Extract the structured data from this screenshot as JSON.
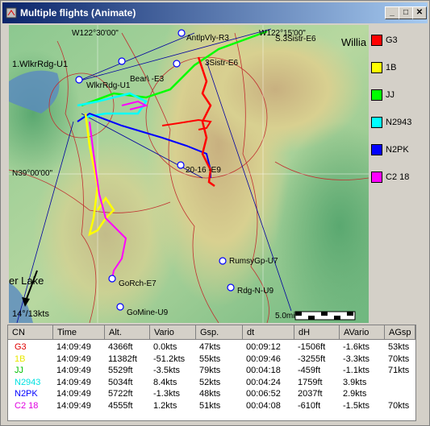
{
  "window": {
    "title": "Multiple flights (Animate)"
  },
  "map": {
    "labels": [
      "W122°30'00\"",
      "W122°15'00\"",
      "AntlpVly-R3",
      "S.3Sistr-E6",
      "Willia",
      "1.WlkrRdg-U1",
      "WlkrRdg-U1",
      "Bear\\ -E3",
      "3Sistr-E6",
      "N39°00'00\"",
      "20-16 -E9",
      "RumsyGp-U7",
      "Rdg-N-U9",
      "GoRch-E7",
      "GoMine-U9",
      "er Lake"
    ],
    "wind": "14°/13kts",
    "scale": "5.0mi"
  },
  "legend": [
    {
      "name": "G3",
      "color": "#ff0000"
    },
    {
      "name": "1B",
      "color": "#ffff00"
    },
    {
      "name": "JJ",
      "color": "#00ff00"
    },
    {
      "name": "N2943",
      "color": "#00ffff"
    },
    {
      "name": "N2PK",
      "color": "#0000ff"
    },
    {
      "name": "C2 18",
      "color": "#ff00ff"
    }
  ],
  "table": {
    "columns": [
      "CN",
      "Time",
      "Alt.",
      "Vario",
      "Gsp.",
      "dt",
      "dH",
      "AVario",
      "AGsp"
    ],
    "rows": [
      [
        "G3",
        "14:09:49",
        "4366ft",
        "0.0kts",
        "47kts",
        "00:09:12",
        "-1506ft",
        "-1.6kts",
        "53kts"
      ],
      [
        "1B",
        "14:09:49",
        "11382ft",
        "-51.2kts",
        "55kts",
        "00:09:46",
        "-3255ft",
        "-3.3kts",
        "70kts"
      ],
      [
        "JJ",
        "14:09:49",
        "5529ft",
        "-3.5kts",
        "79kts",
        "00:04:18",
        "-459ft",
        "-1.1kts",
        "71kts"
      ],
      [
        "N2943",
        "14:09:49",
        "5034ft",
        "8.4kts",
        "52kts",
        "00:04:24",
        "1759ft",
        "3.9kts",
        null
      ],
      [
        "N2PK",
        "14:09:49",
        "5722ft",
        "-1.3kts",
        "48kts",
        "00:06:52",
        "2037ft",
        "2.9kts",
        null
      ],
      [
        "C2 18",
        "14:09:49",
        "4555ft",
        "1.2kts",
        "51kts",
        "00:04:08",
        "-610ft",
        "-1.5kts",
        "70kts"
      ]
    ],
    "row_colors": [
      "#e00000",
      "#e8e800",
      "#00c000",
      "#00e0e0",
      "#0000ff",
      "#e000e0"
    ]
  }
}
